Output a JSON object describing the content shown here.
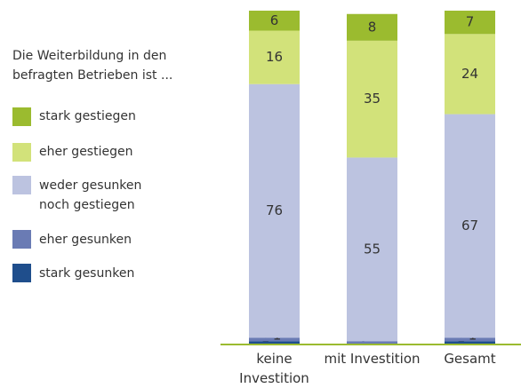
{
  "chart_data": {
    "type": "stacked_bar",
    "title": "Die Weiterbildung in den befragten Betrieben ist ...",
    "categories": [
      "keine Investition",
      "mit Investition",
      "Gesamt"
    ],
    "series": [
      {
        "name": "stark gesunken",
        "color": "#1f4e8c",
        "values": [
          1,
          0,
          1
        ]
      },
      {
        "name": "eher gesunken",
        "color": "#6a7bb4",
        "values": [
          1,
          1,
          1
        ]
      },
      {
        "name": "weder gesunken noch gestiegen",
        "color": "#bcc3e0",
        "values": [
          76,
          55,
          67
        ]
      },
      {
        "name": "eher gestiegen",
        "color": "#d2e27a",
        "values": [
          16,
          35,
          24
        ]
      },
      {
        "name": "stark gestiegen",
        "color": "#9bbb2f",
        "values": [
          6,
          8,
          7
        ]
      }
    ],
    "ylim": [
      0,
      100
    ]
  }
}
